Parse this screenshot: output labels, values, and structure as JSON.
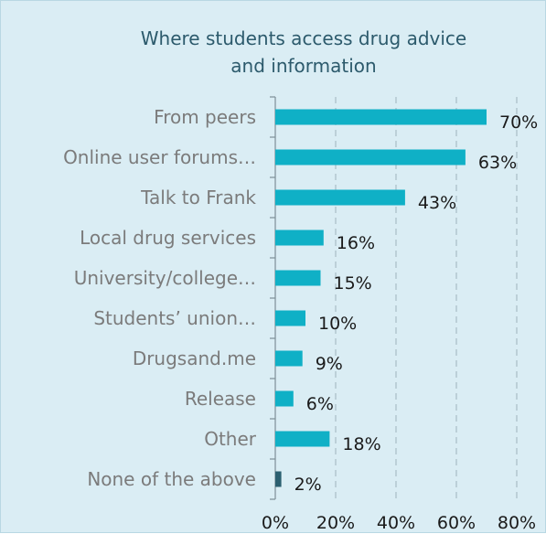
{
  "chart_data": {
    "type": "bar",
    "orientation": "horizontal",
    "title": "Where students access drug advice and information",
    "title_lines": [
      "Where students access drug advice",
      "and information"
    ],
    "categories": [
      "From peers",
      "Online user forums…",
      "Talk to Frank",
      "Local drug services",
      "University/college…",
      "Students’ union…",
      "Drugsand.me",
      "Release",
      "Other",
      "None of the above"
    ],
    "values": [
      70,
      63,
      43,
      16,
      15,
      10,
      9,
      6,
      18,
      2
    ],
    "value_labels": [
      "70%",
      "63%",
      "43%",
      "16%",
      "15%",
      "10%",
      "9%",
      "6%",
      "18%",
      "2%"
    ],
    "bar_colors": [
      "#0fb0c6",
      "#0fb0c6",
      "#0fb0c6",
      "#0fb0c6",
      "#0fb0c6",
      "#0fb0c6",
      "#0fb0c6",
      "#0fb0c6",
      "#0fb0c6",
      "#2b5f70"
    ],
    "xlim": [
      0,
      80
    ],
    "xticks": [
      0,
      20,
      40,
      60,
      80
    ],
    "xtick_labels": [
      "0%",
      "20%",
      "40%",
      "60%",
      "80%"
    ],
    "xlabel": "",
    "ylabel": "",
    "grid": "vertical dashed",
    "legend": "none"
  },
  "colors": {
    "background": "#daedf4",
    "bar": "#0fb0c6",
    "bar_highlight": "#2b5f70",
    "title": "#2c5a6c",
    "category_text": "#7b7b7b",
    "value_text": "#1a1a1a",
    "grid": "#9eb4bc",
    "axis": "#7d8f96"
  }
}
